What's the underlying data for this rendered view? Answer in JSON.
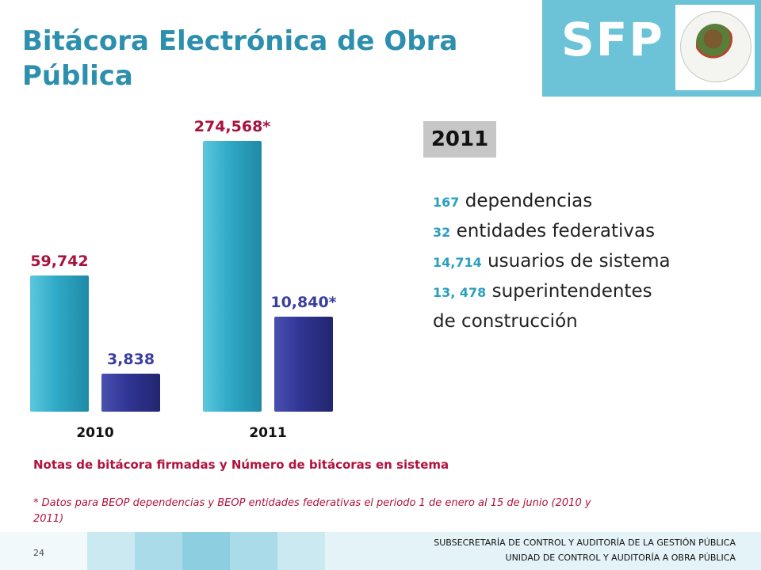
{
  "title": "Bitácora Electrónica de Obra Pública",
  "logo": {
    "text": "SFP",
    "seal": "mexico-coat-of-arms-icon"
  },
  "chart_data": {
    "type": "bar",
    "categories": [
      "2010",
      "2011"
    ],
    "series": [
      {
        "values": [
          59742,
          274568
        ],
        "labels": [
          "59,742",
          "274,568*"
        ],
        "color": "#2fa9c6",
        "label_color": "#a8133c"
      },
      {
        "values": [
          3838,
          10840
        ],
        "labels": [
          "3,838",
          "10,840*"
        ],
        "color": "#303594",
        "label_color": "#3a3f9e"
      }
    ],
    "title": "Notas de bitácora firmadas y Número de bitácoras en sistema",
    "xlabel": "",
    "ylabel": "",
    "grid": false,
    "legend": "none"
  },
  "badge": {
    "year": "2011"
  },
  "stats": [
    {
      "number": "167",
      "text": "dependencias"
    },
    {
      "number": "32",
      "text": "entidades federativas"
    },
    {
      "number": "14,714",
      "text": "usuarios de sistema"
    },
    {
      "number": "13, 478",
      "text": "superintendentes"
    }
  ],
  "stats_tail": "de construcción",
  "notes_title": "Notas de bitácora firmadas y Número de bitácoras en sistema",
  "footnote": "* Datos para BEOP dependencias y BEOP entidades federativas el periodo 1 de enero al 15 de junio (2010 y 2011)",
  "page_number": "24",
  "footer": {
    "line1": "SUBSECRETARÍA DE CONTROL Y AUDITORÍA DE LA GESTIÓN PÚBLICA",
    "line2": "UNIDAD DE CONTROL Y AUDITORÍA A OBRA PÚBLICA"
  },
  "colors": {
    "title": "#2d8fae",
    "logo_bg": "#6cc2d7",
    "accent_red": "#b0133e",
    "number_blue": "#2aa0c0"
  }
}
